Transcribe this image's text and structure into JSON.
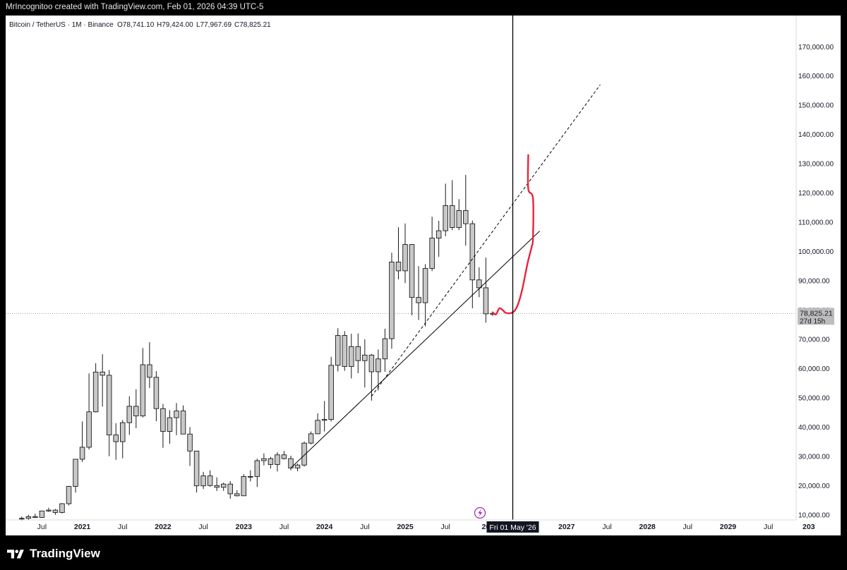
{
  "header": {
    "credit": "MrIncognitoo created with TradingView.com, Feb 01, 2026 04:39 UTC-5"
  },
  "legend": {
    "symbol": "Bitcoin / TetherUS · 1M · Binance",
    "open": "O78,741.10",
    "high": "H79,424.00",
    "low": "L77,967.69",
    "close": "C78,825.21"
  },
  "price_tag": {
    "price": "78,825.21",
    "countdown": "27d 15h"
  },
  "time_tag": "Fri 01 May '26",
  "footer": {
    "brand": "TradingView"
  },
  "colors": {
    "candle_fill": "#c8c8c8",
    "candle_border": "#1a1a1a",
    "drawing_red": "#e8243c",
    "brand_icon": "#9c27b0"
  },
  "chart_data": {
    "type": "candlestick",
    "interval": "1M",
    "y_axis": {
      "range": [
        8500,
        171500
      ],
      "ticks": [
        10000,
        20000,
        30000,
        40000,
        50000,
        60000,
        70000,
        80000,
        90000,
        100000,
        110000,
        120000,
        130000,
        140000,
        150000,
        160000,
        170000
      ],
      "tick_labels": [
        "10,000.00",
        "20,000.00",
        "30,000.00",
        "40,000.00",
        "50,000.00",
        "60,000.00",
        "70,000.00",
        "80,000.00",
        "90,000.00",
        "100,000.00",
        "110,000.00",
        "120,000.00",
        "130,000.00",
        "140,000.00",
        "150,000.00",
        "160,000.00",
        "170,000.00"
      ],
      "grid": false
    },
    "x_axis": {
      "labels": [
        {
          "text": "Jul",
          "month": "2020-07"
        },
        {
          "text": "2021",
          "month": "2021-01"
        },
        {
          "text": "Jul",
          "month": "2021-07"
        },
        {
          "text": "2022",
          "month": "2022-01"
        },
        {
          "text": "Jul",
          "month": "2022-07"
        },
        {
          "text": "2023",
          "month": "2023-01"
        },
        {
          "text": "Jul",
          "month": "2023-07"
        },
        {
          "text": "2024",
          "month": "2024-01"
        },
        {
          "text": "Jul",
          "month": "2024-07"
        },
        {
          "text": "2025",
          "month": "2025-01"
        },
        {
          "text": "Jul",
          "month": "2025-07"
        },
        {
          "text": "20",
          "month": "2026-01"
        },
        {
          "text": "2027",
          "month": "2027-01"
        },
        {
          "text": "Jul",
          "month": "2027-07"
        },
        {
          "text": "2028",
          "month": "2028-01"
        },
        {
          "text": "Jul",
          "month": "2028-07"
        },
        {
          "text": "2029",
          "month": "2029-01"
        },
        {
          "text": "Jul",
          "month": "2029-07"
        },
        {
          "text": "203",
          "month": "2030-01"
        }
      ]
    },
    "candles": [
      {
        "date": "2020-04",
        "o": 8600,
        "h": 9400,
        "l": 8000,
        "c": 8800
      },
      {
        "date": "2020-05",
        "o": 8800,
        "h": 10000,
        "l": 8200,
        "c": 9400
      },
      {
        "date": "2020-06",
        "o": 9400,
        "h": 10400,
        "l": 8900,
        "c": 9100
      },
      {
        "date": "2020-07",
        "o": 9100,
        "h": 11400,
        "l": 9000,
        "c": 11300
      },
      {
        "date": "2020-08",
        "o": 11300,
        "h": 12400,
        "l": 11000,
        "c": 11600
      },
      {
        "date": "2020-09",
        "o": 11600,
        "h": 12000,
        "l": 10000,
        "c": 10800
      },
      {
        "date": "2020-10",
        "o": 10800,
        "h": 14000,
        "l": 10500,
        "c": 13800
      },
      {
        "date": "2020-11",
        "o": 13800,
        "h": 19900,
        "l": 13200,
        "c": 19700
      },
      {
        "date": "2020-12",
        "o": 19700,
        "h": 29000,
        "l": 17600,
        "c": 29000
      },
      {
        "date": "2021-01",
        "o": 29000,
        "h": 41900,
        "l": 28100,
        "c": 33100
      },
      {
        "date": "2021-02",
        "o": 33100,
        "h": 58300,
        "l": 32300,
        "c": 45200
      },
      {
        "date": "2021-03",
        "o": 45200,
        "h": 61800,
        "l": 45000,
        "c": 58800
      },
      {
        "date": "2021-04",
        "o": 58800,
        "h": 64900,
        "l": 47000,
        "c": 57700
      },
      {
        "date": "2021-05",
        "o": 57700,
        "h": 59500,
        "l": 30000,
        "c": 37300
      },
      {
        "date": "2021-06",
        "o": 37300,
        "h": 41300,
        "l": 28800,
        "c": 35000
      },
      {
        "date": "2021-07",
        "o": 35000,
        "h": 42400,
        "l": 29300,
        "c": 41500
      },
      {
        "date": "2021-08",
        "o": 41500,
        "h": 50500,
        "l": 37300,
        "c": 47100
      },
      {
        "date": "2021-09",
        "o": 47100,
        "h": 52900,
        "l": 39600,
        "c": 43800
      },
      {
        "date": "2021-10",
        "o": 43800,
        "h": 67000,
        "l": 43300,
        "c": 61300
      },
      {
        "date": "2021-11",
        "o": 61300,
        "h": 69000,
        "l": 53300,
        "c": 57000
      },
      {
        "date": "2021-12",
        "o": 57000,
        "h": 59100,
        "l": 42000,
        "c": 46300
      },
      {
        "date": "2022-01",
        "o": 46300,
        "h": 47900,
        "l": 32900,
        "c": 38500
      },
      {
        "date": "2022-02",
        "o": 38500,
        "h": 45800,
        "l": 34300,
        "c": 43200
      },
      {
        "date": "2022-03",
        "o": 43200,
        "h": 48200,
        "l": 37200,
        "c": 45500
      },
      {
        "date": "2022-04",
        "o": 45500,
        "h": 47400,
        "l": 37600,
        "c": 37600
      },
      {
        "date": "2022-05",
        "o": 37600,
        "h": 40000,
        "l": 26700,
        "c": 31800
      },
      {
        "date": "2022-06",
        "o": 31800,
        "h": 31900,
        "l": 17600,
        "c": 19900
      },
      {
        "date": "2022-07",
        "o": 19900,
        "h": 24700,
        "l": 18800,
        "c": 23300
      },
      {
        "date": "2022-08",
        "o": 23300,
        "h": 25200,
        "l": 19600,
        "c": 20000
      },
      {
        "date": "2022-09",
        "o": 20000,
        "h": 22800,
        "l": 18100,
        "c": 19400
      },
      {
        "date": "2022-10",
        "o": 19400,
        "h": 21000,
        "l": 18200,
        "c": 20500
      },
      {
        "date": "2022-11",
        "o": 20500,
        "h": 21500,
        "l": 15500,
        "c": 17200
      },
      {
        "date": "2022-12",
        "o": 17200,
        "h": 18400,
        "l": 16300,
        "c": 16500
      },
      {
        "date": "2023-01",
        "o": 16500,
        "h": 23900,
        "l": 16500,
        "c": 23100
      },
      {
        "date": "2023-02",
        "o": 23100,
        "h": 25200,
        "l": 21400,
        "c": 23100
      },
      {
        "date": "2023-03",
        "o": 23100,
        "h": 29200,
        "l": 19500,
        "c": 28500
      },
      {
        "date": "2023-04",
        "o": 28500,
        "h": 31000,
        "l": 26900,
        "c": 29200
      },
      {
        "date": "2023-05",
        "o": 29200,
        "h": 29800,
        "l": 25800,
        "c": 27200
      },
      {
        "date": "2023-06",
        "o": 27200,
        "h": 31400,
        "l": 24800,
        "c": 30500
      },
      {
        "date": "2023-07",
        "o": 30500,
        "h": 31800,
        "l": 28900,
        "c": 29200
      },
      {
        "date": "2023-08",
        "o": 29200,
        "h": 30200,
        "l": 25200,
        "c": 26000
      },
      {
        "date": "2023-09",
        "o": 26000,
        "h": 27500,
        "l": 24900,
        "c": 27000
      },
      {
        "date": "2023-10",
        "o": 27000,
        "h": 35000,
        "l": 26500,
        "c": 34500
      },
      {
        "date": "2023-11",
        "o": 34500,
        "h": 38500,
        "l": 34100,
        "c": 37700
      },
      {
        "date": "2023-12",
        "o": 37700,
        "h": 44700,
        "l": 37600,
        "c": 42300
      },
      {
        "date": "2024-01",
        "o": 42300,
        "h": 48900,
        "l": 38500,
        "c": 42600
      },
      {
        "date": "2024-02",
        "o": 42600,
        "h": 64000,
        "l": 41900,
        "c": 61100
      },
      {
        "date": "2024-03",
        "o": 61100,
        "h": 73800,
        "l": 59000,
        "c": 71300
      },
      {
        "date": "2024-04",
        "o": 71300,
        "h": 72800,
        "l": 59200,
        "c": 60700
      },
      {
        "date": "2024-05",
        "o": 60700,
        "h": 71900,
        "l": 56600,
        "c": 67500
      },
      {
        "date": "2024-06",
        "o": 67500,
        "h": 72000,
        "l": 58400,
        "c": 62700
      },
      {
        "date": "2024-07",
        "o": 62700,
        "h": 70000,
        "l": 53500,
        "c": 64600
      },
      {
        "date": "2024-08",
        "o": 64600,
        "h": 65000,
        "l": 49000,
        "c": 58900
      },
      {
        "date": "2024-09",
        "o": 58900,
        "h": 66500,
        "l": 52500,
        "c": 63300
      },
      {
        "date": "2024-10",
        "o": 63300,
        "h": 73600,
        "l": 58900,
        "c": 70200
      },
      {
        "date": "2024-11",
        "o": 70200,
        "h": 99600,
        "l": 66800,
        "c": 96400
      },
      {
        "date": "2024-12",
        "o": 96400,
        "h": 108300,
        "l": 90500,
        "c": 93400
      },
      {
        "date": "2025-01",
        "o": 93400,
        "h": 109600,
        "l": 89200,
        "c": 102400
      },
      {
        "date": "2025-02",
        "o": 102400,
        "h": 102500,
        "l": 78200,
        "c": 84300
      },
      {
        "date": "2025-03",
        "o": 84300,
        "h": 95000,
        "l": 76600,
        "c": 82500
      },
      {
        "date": "2025-04",
        "o": 82500,
        "h": 95700,
        "l": 74400,
        "c": 94200
      },
      {
        "date": "2025-05",
        "o": 94200,
        "h": 111900,
        "l": 93300,
        "c": 104600
      },
      {
        "date": "2025-06",
        "o": 104600,
        "h": 110500,
        "l": 98200,
        "c": 107100
      },
      {
        "date": "2025-07",
        "o": 107100,
        "h": 123200,
        "l": 105200,
        "c": 115700
      },
      {
        "date": "2025-08",
        "o": 115700,
        "h": 124400,
        "l": 107300,
        "c": 108200
      },
      {
        "date": "2025-09",
        "o": 108200,
        "h": 117900,
        "l": 107300,
        "c": 114000
      },
      {
        "date": "2025-10",
        "o": 114000,
        "h": 126200,
        "l": 102000,
        "c": 109500
      },
      {
        "date": "2025-11",
        "o": 109500,
        "h": 110600,
        "l": 80600,
        "c": 90300
      },
      {
        "date": "2025-12",
        "o": 90300,
        "h": 94600,
        "l": 84400,
        "c": 87600
      },
      {
        "date": "2026-01",
        "o": 87600,
        "h": 97900,
        "l": 75700,
        "c": 78700
      },
      {
        "date": "2026-02",
        "o": 78741.1,
        "h": 79424.0,
        "l": 77967.69,
        "c": 78825.21
      }
    ],
    "drawings": [
      {
        "name": "support-trendline",
        "style": "solid",
        "points": [
          {
            "date": "2023-08",
            "price": 26000
          },
          {
            "date": "2026-09",
            "price": 107000
          }
        ]
      },
      {
        "name": "dashed-trendline",
        "style": "dashed",
        "points": [
          {
            "date": "2024-08",
            "price": 50500
          },
          {
            "date": "2027-06",
            "price": 157000
          }
        ]
      },
      {
        "name": "projection-path",
        "style": "red-brush",
        "points": [
          {
            "date": "2026-02",
            "price": 79200
          },
          {
            "date": "2026-02.5",
            "price": 78500
          },
          {
            "date": "2026-03",
            "price": 80600
          },
          {
            "date": "2026-03.5",
            "price": 80000
          },
          {
            "date": "2026-04",
            "price": 79000
          },
          {
            "date": "2026-05",
            "price": 79200
          },
          {
            "date": "2026-05.7",
            "price": 81500
          },
          {
            "date": "2026-06.4",
            "price": 87000
          },
          {
            "date": "2026-07.2",
            "price": 96000
          },
          {
            "date": "2026-07.8",
            "price": 101500
          },
          {
            "date": "2026-08",
            "price": 104500
          },
          {
            "date": "2026-08",
            "price": 118200
          },
          {
            "date": "2026-07.3",
            "price": 121500
          },
          {
            "date": "2026-07.3",
            "price": 133000
          }
        ]
      },
      {
        "name": "time-marker",
        "style": "vertical",
        "date": "2026-05"
      }
    ],
    "last_price": 78825.21
  }
}
